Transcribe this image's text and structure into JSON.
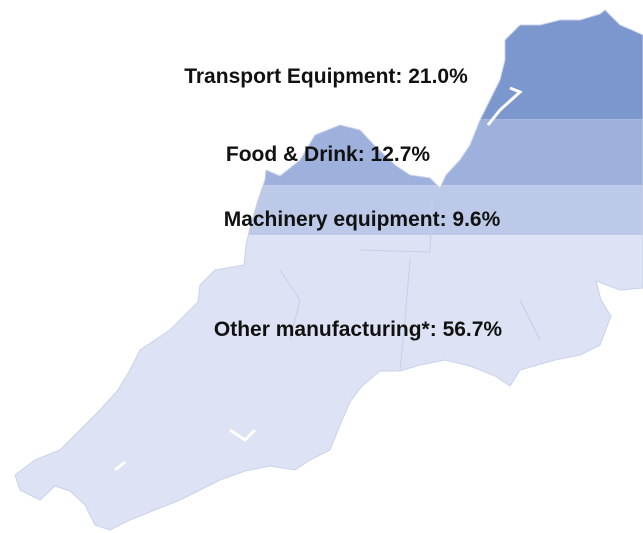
{
  "chart_data": {
    "type": "mapfill",
    "categories": [
      "Transport Equipment",
      "Food & Drink",
      "Machinery equipment",
      "Other manufacturing*"
    ],
    "values": [
      21.0,
      12.7,
      9.6,
      56.7
    ],
    "value_labels": [
      "21.0%",
      "12.7%",
      "9.6%",
      "56.7%"
    ],
    "colors": [
      "#7b97cd",
      "#9db1dc",
      "#bdc9e8",
      "#dde3f4"
    ]
  }
}
